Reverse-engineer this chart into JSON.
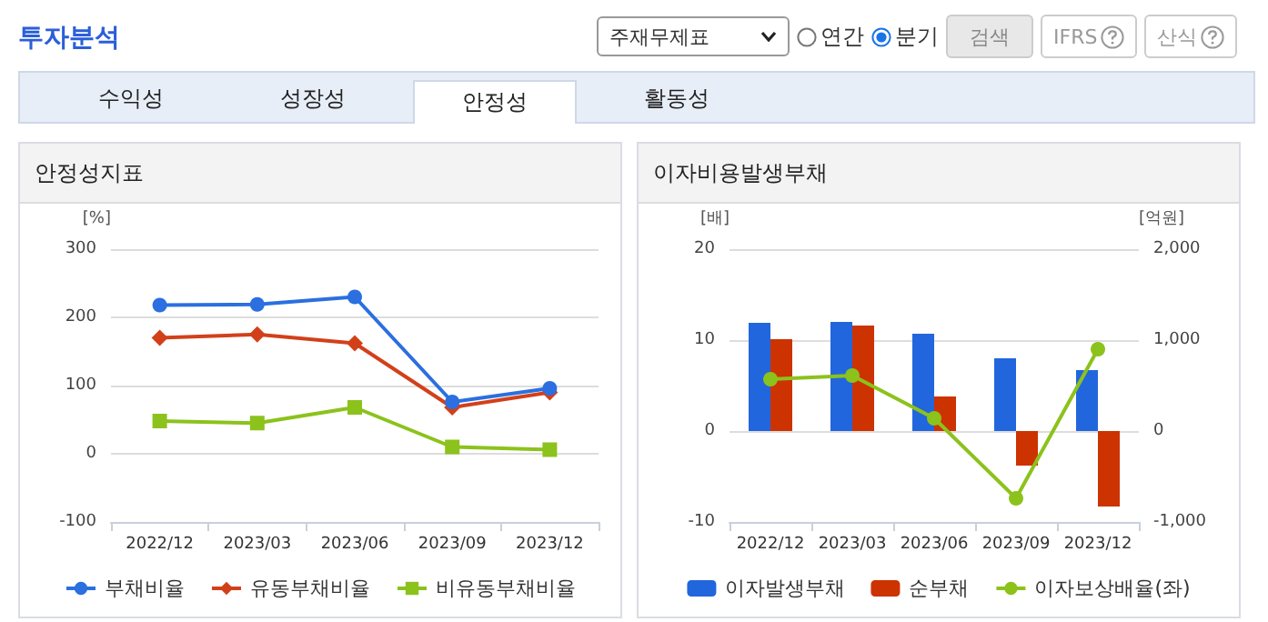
{
  "chart_data": [
    {
      "type": "other",
      "title": "투자분석",
      "annotations": [
        "주재무제표",
        "연간",
        "분기",
        "검색",
        "IFRS",
        "산식",
        "수익성",
        "성장성",
        "안정성",
        "활동성"
      ]
    },
    {
      "type": "line",
      "title": "안정성지표",
      "ylabel": "[%]",
      "categories": [
        "2022/12",
        "2023/03",
        "2023/06",
        "2023/09",
        "2023/12"
      ],
      "series": [
        {
          "name": "부채비율",
          "color": "#2b6fe0",
          "marker": "circle",
          "values": [
            218,
            219,
            230,
            76,
            96
          ]
        },
        {
          "name": "유동부채비율",
          "color": "#d2401a",
          "marker": "diamond",
          "values": [
            170,
            175,
            162,
            68,
            90
          ]
        },
        {
          "name": "비유동부채비율",
          "color": "#8cc21c",
          "marker": "square",
          "values": [
            48,
            45,
            68,
            10,
            6
          ]
        }
      ],
      "ylim": [
        -100,
        300
      ],
      "yticks": [
        -100,
        0,
        100,
        200,
        300
      ],
      "grid": "y",
      "legend": "bottom"
    },
    {
      "type": "bar",
      "title": "이자비용발생부채",
      "ylabel": "[배]",
      "y2label": "[억원]",
      "categories": [
        "2022/12",
        "2023/03",
        "2023/06",
        "2023/09",
        "2023/12"
      ],
      "series": [
        {
          "name": "이자발생부채",
          "color": "#2266dd",
          "axis": "y2",
          "values": [
            1190,
            1200,
            1070,
            800,
            670
          ]
        },
        {
          "name": "순부채",
          "color": "#cc3300",
          "axis": "y2",
          "values": [
            1010,
            1160,
            380,
            -380,
            -830
          ]
        },
        {
          "name": "이자보상배율(좌)",
          "type": "line",
          "color": "#8cc21c",
          "marker": "circle",
          "values": [
            5.7,
            6.1,
            1.4,
            -7.4,
            9.0
          ]
        }
      ],
      "ylim": [
        -10,
        20
      ],
      "yticks": [
        -10,
        0,
        10,
        20
      ],
      "y2lim": [
        -1000,
        2000
      ],
      "y2ticks": [
        {
          "value": -1000,
          "label": "-1,000"
        },
        {
          "value": 0,
          "label": "0"
        },
        {
          "value": 1000,
          "label": "1,000"
        },
        {
          "value": 2000,
          "label": "2,000"
        }
      ],
      "grid": "y",
      "legend": "bottom"
    }
  ]
}
